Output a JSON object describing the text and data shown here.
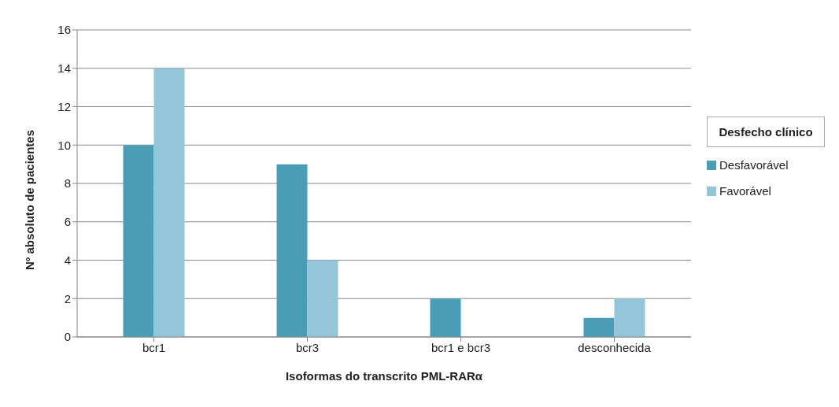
{
  "chart_data": {
    "type": "bar",
    "xlabel": "Isoformas do transcrito PML-RARα",
    "ylabel": "Nº absoluto de pacientes",
    "legend_title": "Desfecho clínico",
    "categories": [
      "bcr1",
      "bcr3",
      "bcr1 e bcr3",
      "desconhecida"
    ],
    "series": [
      {
        "name": "Desfavorável",
        "color": "#4a9db5",
        "values": [
          10,
          9,
          2,
          1
        ]
      },
      {
        "name": "Favorável",
        "color": "#93c6d9",
        "values": [
          14,
          4,
          0,
          2
        ]
      }
    ],
    "ylim": [
      0,
      16
    ],
    "yticks": [
      0,
      2,
      4,
      6,
      8,
      10,
      12,
      14,
      16
    ],
    "grid": "y",
    "legend": "right"
  }
}
